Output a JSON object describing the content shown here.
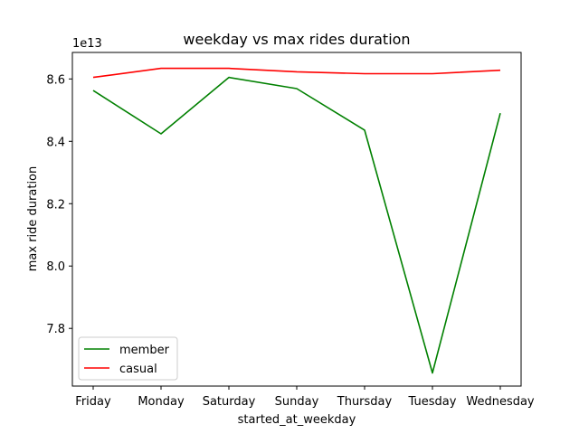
{
  "chart_data": {
    "type": "line",
    "title": "weekday vs max rides duration",
    "xlabel": "started_at_weekday",
    "ylabel": "max ride duration",
    "y_offset_label": "1e13",
    "categories": [
      "Friday",
      "Monday",
      "Saturday",
      "Sunday",
      "Thursday",
      "Tuesday",
      "Wednesday"
    ],
    "y_ticks": [
      "7.8",
      "8.0",
      "8.2",
      "8.4",
      "8.6"
    ],
    "y_tick_values": [
      7.8,
      8.0,
      8.2,
      8.4,
      8.6
    ],
    "ylim": [
      7.615,
      8.685
    ],
    "legend_position": "lower-left",
    "grid": false,
    "series": [
      {
        "name": "member",
        "color": "#008000",
        "values": [
          8.563,
          8.424,
          8.605,
          8.569,
          8.436,
          7.657,
          8.49
        ]
      },
      {
        "name": "casual",
        "color": "#ff0000",
        "values": [
          8.605,
          8.634,
          8.634,
          8.623,
          8.617,
          8.617,
          8.628
        ]
      }
    ]
  }
}
